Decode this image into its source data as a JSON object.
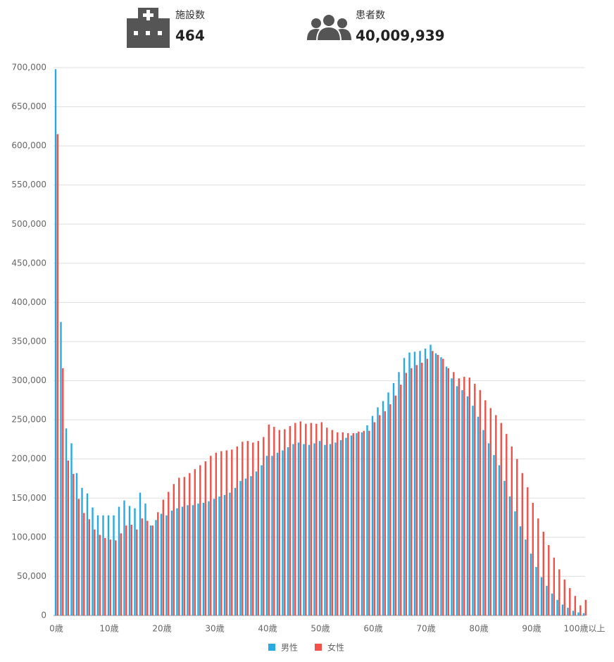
{
  "stats": [
    {
      "label": "施設数",
      "value": "464"
    },
    {
      "label": "患者数",
      "value": "40,009,939"
    }
  ],
  "chart_data": {
    "type": "grouped-bar",
    "categories": [
      "0歳",
      null,
      null,
      null,
      null,
      null,
      null,
      null,
      null,
      null,
      "10歳",
      null,
      null,
      null,
      null,
      null,
      null,
      null,
      null,
      null,
      "20歳",
      null,
      null,
      null,
      null,
      null,
      null,
      null,
      null,
      null,
      "30歳",
      null,
      null,
      null,
      null,
      null,
      null,
      null,
      null,
      null,
      "40歳",
      null,
      null,
      null,
      null,
      null,
      null,
      null,
      null,
      null,
      "50歳",
      null,
      null,
      null,
      null,
      null,
      null,
      null,
      null,
      null,
      "60歳",
      null,
      null,
      null,
      null,
      null,
      null,
      null,
      null,
      null,
      "70歳",
      null,
      null,
      null,
      null,
      null,
      null,
      null,
      null,
      null,
      "80歳",
      null,
      null,
      null,
      null,
      null,
      null,
      null,
      null,
      null,
      "90歳",
      null,
      null,
      null,
      null,
      null,
      null,
      null,
      null,
      null,
      "100歳以上"
    ],
    "series": [
      {
        "name": "男性",
        "color": "#29abe2",
        "values": [
          698000,
          375000,
          239000,
          220000,
          182000,
          163000,
          156000,
          138000,
          128000,
          128000,
          128000,
          128000,
          139000,
          147000,
          140000,
          137000,
          157000,
          143000,
          115000,
          122000,
          130000,
          128000,
          134000,
          137000,
          139000,
          141000,
          141000,
          143000,
          144000,
          146000,
          149000,
          152000,
          154000,
          157000,
          163000,
          172000,
          175000,
          178000,
          184000,
          192000,
          204000,
          204000,
          208000,
          211000,
          215000,
          219000,
          221000,
          219000,
          218000,
          220000,
          223000,
          218000,
          219000,
          221000,
          224000,
          227000,
          230000,
          233000,
          234000,
          243000,
          255000,
          266000,
          274000,
          285000,
          297000,
          311000,
          329000,
          336000,
          337000,
          338000,
          341000,
          346000,
          335000,
          330000,
          318000,
          303000,
          293000,
          288000,
          280000,
          268000,
          254000,
          237000,
          220000,
          205000,
          192000,
          172000,
          152000,
          133000,
          114000,
          97000,
          79000,
          62000,
          49000,
          38000,
          28000,
          20000,
          14000,
          10000,
          6000,
          4000,
          3000
        ]
      },
      {
        "name": "女性",
        "color": "#f0524a",
        "values": [
          615000,
          316000,
          198000,
          181000,
          149000,
          131000,
          123000,
          110000,
          103000,
          99000,
          97000,
          96000,
          105000,
          115000,
          116000,
          110000,
          124000,
          121000,
          115000,
          132000,
          148000,
          158000,
          168000,
          176000,
          177000,
          182000,
          187000,
          192000,
          197000,
          204000,
          208000,
          210000,
          211000,
          212000,
          216000,
          222000,
          223000,
          221000,
          223000,
          228000,
          244000,
          241000,
          237000,
          238000,
          242000,
          246000,
          248000,
          245000,
          246000,
          245000,
          247000,
          240000,
          237000,
          234000,
          234000,
          233000,
          233000,
          235000,
          236000,
          236000,
          247000,
          256000,
          261000,
          270000,
          281000,
          295000,
          310000,
          316000,
          320000,
          323000,
          328000,
          338000,
          333000,
          328000,
          316000,
          311000,
          303000,
          305000,
          304000,
          296000,
          288000,
          275000,
          265000,
          256000,
          246000,
          232000,
          216000,
          200000,
          182000,
          164000,
          144000,
          124000,
          107000,
          90000,
          74000,
          59000,
          46000,
          35000,
          25000,
          13000,
          20000
        ]
      }
    ],
    "ylim": [
      0,
      700000
    ],
    "yticks": [
      0,
      {
        "value": 50000,
        "label": "50,000"
      },
      {
        "value": 100000,
        "label": "100,000"
      },
      {
        "value": 150000,
        "label": "150,000"
      },
      {
        "value": 200000,
        "label": "200,000"
      },
      {
        "value": 250000,
        "label": "250,000"
      },
      {
        "value": 300000,
        "label": "300,000"
      },
      {
        "value": 350000,
        "label": "350,000"
      },
      {
        "value": 400000,
        "label": "400,000"
      },
      {
        "value": 450000,
        "label": "450,000"
      },
      {
        "value": 500000,
        "label": "500,000"
      },
      {
        "value": 550000,
        "label": "550,000"
      },
      {
        "value": 600000,
        "label": "600,000"
      },
      {
        "value": 650000,
        "label": "650,000"
      },
      {
        "value": 700000,
        "label": "700,000"
      }
    ],
    "grid": true,
    "legend": "bottom"
  }
}
